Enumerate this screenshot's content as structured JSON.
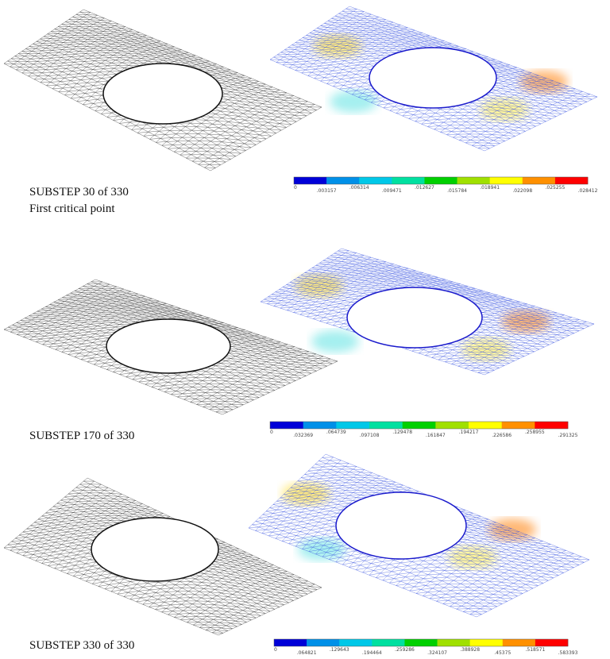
{
  "panels": [
    {
      "caption": "SUBSTEP 30 of  330",
      "note": "First critical point",
      "legend": [
        "0",
        ".003157",
        ".006314",
        ".009471",
        ".012627",
        ".015784",
        ".018941",
        ".022098",
        ".025255",
        ".028412"
      ]
    },
    {
      "caption": "SUBSTEP 170 of  330",
      "legend": [
        "0",
        ".032369",
        ".064739",
        ".097108",
        ".129478",
        ".161847",
        ".194217",
        ".226586",
        ".258955",
        ".291325"
      ]
    },
    {
      "caption": "SUBSTEP 330 of  330",
      "legend": [
        "0",
        ".064821",
        ".129643",
        ".194464",
        ".259286",
        ".324107",
        ".388928",
        ".45375",
        ".518571",
        ".583393"
      ]
    }
  ]
}
